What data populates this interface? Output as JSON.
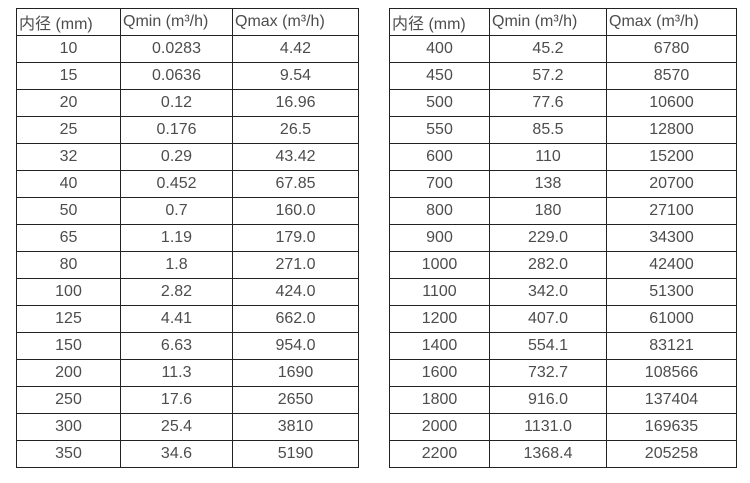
{
  "style": {
    "background_color": "#ffffff",
    "border_color": "#222222",
    "text_color": "#4d4d4d"
  },
  "tables": [
    {
      "name": "flow-table-small-diameters",
      "headers": [
        "内径 (mm)",
        "Qmin (m³/h)",
        "Qmax (m³/h)"
      ],
      "rows": [
        [
          "10",
          "0.0283",
          "4.42"
        ],
        [
          "15",
          "0.0636",
          "9.54"
        ],
        [
          "20",
          "0.12",
          "16.96"
        ],
        [
          "25",
          "0.176",
          "26.5"
        ],
        [
          "32",
          "0.29",
          "43.42"
        ],
        [
          "40",
          "0.452",
          "67.85"
        ],
        [
          "50",
          "0.7",
          "160.0"
        ],
        [
          "65",
          "1.19",
          "179.0"
        ],
        [
          "80",
          "1.8",
          "271.0"
        ],
        [
          "100",
          "2.82",
          "424.0"
        ],
        [
          "125",
          "4.41",
          "662.0"
        ],
        [
          "150",
          "6.63",
          "954.0"
        ],
        [
          "200",
          "11.3",
          "1690"
        ],
        [
          "250",
          "17.6",
          "2650"
        ],
        [
          "300",
          "25.4",
          "3810"
        ],
        [
          "350",
          "34.6",
          "5190"
        ]
      ]
    },
    {
      "name": "flow-table-large-diameters",
      "headers": [
        "内径 (mm)",
        "Qmin (m³/h)",
        "Qmax (m³/h)"
      ],
      "rows": [
        [
          "400",
          "45.2",
          "6780"
        ],
        [
          "450",
          "57.2",
          "8570"
        ],
        [
          "500",
          "77.6",
          "10600"
        ],
        [
          "550",
          "85.5",
          "12800"
        ],
        [
          "600",
          "110",
          "15200"
        ],
        [
          "700",
          "138",
          "20700"
        ],
        [
          "800",
          "180",
          "27100"
        ],
        [
          "900",
          "229.0",
          "34300"
        ],
        [
          "1000",
          "282.0",
          "42400"
        ],
        [
          "1100",
          "342.0",
          "51300"
        ],
        [
          "1200",
          "407.0",
          "61000"
        ],
        [
          "1400",
          "554.1",
          "83121"
        ],
        [
          "1600",
          "732.7",
          "108566"
        ],
        [
          "1800",
          "916.0",
          "137404"
        ],
        [
          "2000",
          "1131.0",
          "169635"
        ],
        [
          "2200",
          "1368.4",
          "205258"
        ]
      ]
    }
  ]
}
